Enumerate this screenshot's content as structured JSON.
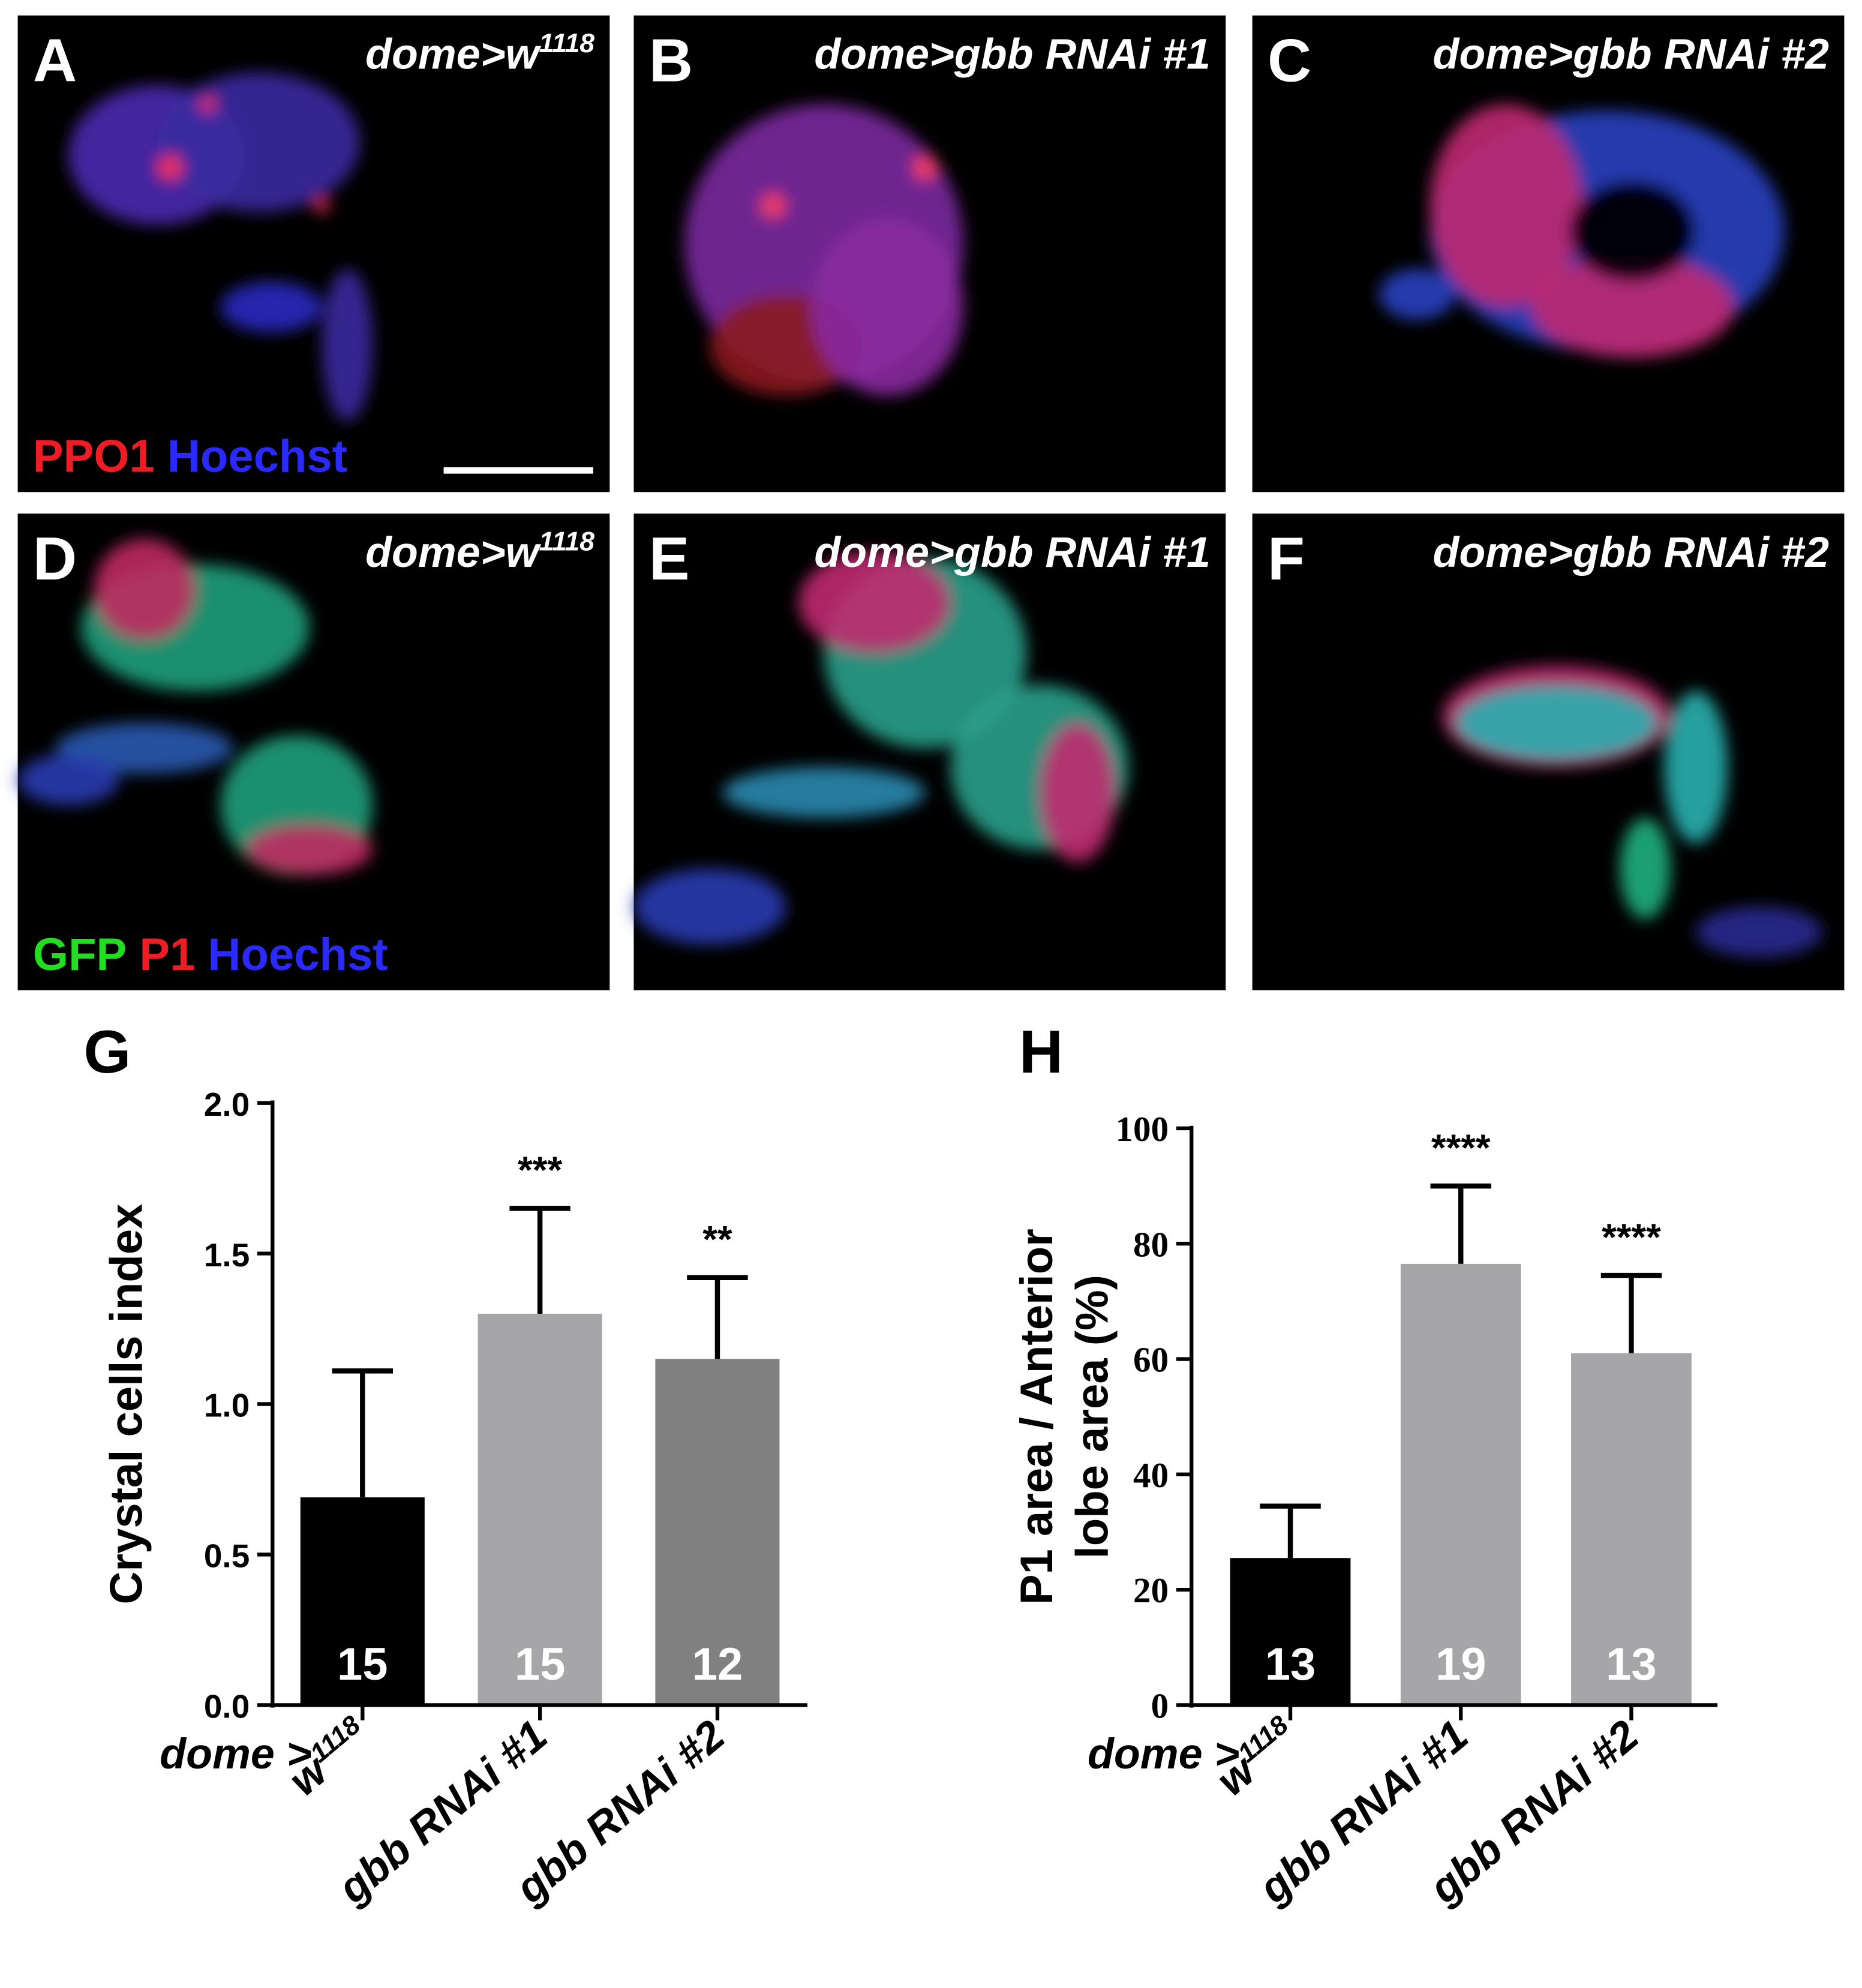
{
  "panels": [
    {
      "label": "A",
      "genotype": "dome>w1118",
      "stains": [
        {
          "text": "PPO1",
          "color": "#ee1c24"
        },
        {
          "text": "Hoechst",
          "color": "#2a2aff"
        }
      ]
    },
    {
      "label": "B",
      "genotype": "dome>gbb RNAi #1"
    },
    {
      "label": "C",
      "genotype": "dome>gbb RNAi #2"
    },
    {
      "label": "D",
      "genotype": "dome>w1118",
      "stains": [
        {
          "text": "GFP",
          "color": "#22dd22"
        },
        {
          "text": "P1",
          "color": "#ee1c24"
        },
        {
          "text": "Hoechst",
          "color": "#2a2aff"
        }
      ]
    },
    {
      "label": "E",
      "genotype": "dome>gbb RNAi #1"
    },
    {
      "label": "F",
      "genotype": "dome>gbb RNAi #2"
    }
  ],
  "chart_data": [
    {
      "type": "bar",
      "panel_label": "G",
      "y_label": [
        "Crystal cells index"
      ],
      "x_prefix": "dome >",
      "categories": [
        "w1118",
        "gbb RNAi #1",
        "gbb RNAi #2"
      ],
      "values": [
        0.69,
        1.3,
        1.15
      ],
      "errors": [
        0.42,
        0.35,
        0.27
      ],
      "colors": [
        "#000000",
        "#a6a6a8",
        "#808080"
      ],
      "sample_sizes": [
        15,
        15,
        12
      ],
      "significance": [
        null,
        "***",
        "**"
      ],
      "ylim": [
        0,
        2
      ],
      "yticks": [
        {
          "value": 0,
          "label": "0.0"
        },
        {
          "value": 0.5,
          "label": "0.5"
        },
        {
          "value": 1,
          "label": "1.0"
        },
        {
          "value": 1.5,
          "label": "1.5"
        },
        {
          "value": 2,
          "label": "2.0"
        }
      ]
    },
    {
      "type": "bar",
      "panel_label": "H",
      "y_label": [
        "P1 area / Anterior",
        "lobe area (%)"
      ],
      "x_prefix": "dome >",
      "categories": [
        "w1118",
        "gbb RNAi #1",
        "gbb RNAi #2"
      ],
      "values": [
        25.5,
        76.5,
        61
      ],
      "errors": [
        9,
        13.5,
        13.5
      ],
      "colors": [
        "#000000",
        "#a6a6a8",
        "#a6a6a8"
      ],
      "sample_sizes": [
        13,
        19,
        13
      ],
      "significance": [
        null,
        "****",
        "****"
      ],
      "ylim": [
        0,
        100
      ],
      "yticks": [
        0,
        20,
        40,
        60,
        80,
        100
      ]
    }
  ]
}
